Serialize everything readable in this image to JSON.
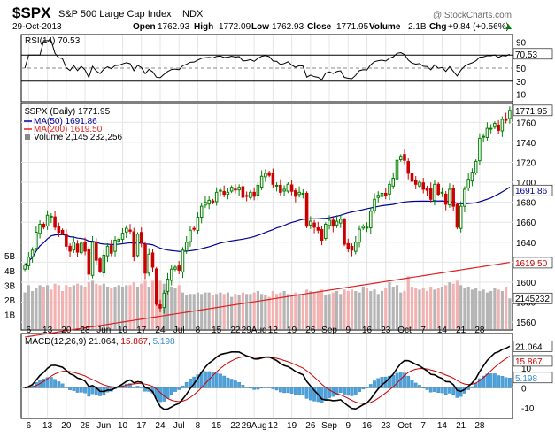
{
  "header": {
    "symbol": "$SPX",
    "name": "S&P 500 Large Cap Index",
    "exchange": "INDX",
    "date": "29-Oct-2013",
    "watermark": "@ StockCharts.com",
    "open_label": "Open",
    "open": "1762.93",
    "high_label": "High",
    "high": "1772.09",
    "low_label": "Low",
    "low": "1762.93",
    "close_label": "Close",
    "close": "1771.95",
    "volume_label": "Volume",
    "volume": "2.1B",
    "chg_label": "Chg",
    "chg": "+9.84 (+0.56%)"
  },
  "colors": {
    "up": "#008000",
    "down": "#cc0000",
    "ma50": "#000099",
    "ma200": "#e02020",
    "macd_hist": "#4aa3df",
    "vol_up": "#b5b5b5",
    "vol_down": "#f2b2b2"
  },
  "legends": {
    "rsi": "RSI(14) 70.53",
    "price": "$SPX (Daily) 1771.95",
    "ma50": "MA(50) 1691.86",
    "ma200": "MA(200) 1619.50",
    "volume": "Volume 2,145,232,256",
    "macd_prefix": "MACD(12,26,9) 21.064,",
    "macd_signal_val": "15.867",
    "macd_hist_val": "5.198"
  },
  "value_tags": {
    "rsi": "70.53",
    "close": "1771.95",
    "ma50": "1691.86",
    "ma200": "1619.50",
    "volume": "2145232",
    "macd": "21.064",
    "signal": "15.867",
    "hist": "5.198"
  },
  "chart_data": {
    "type": "candlestick",
    "x_tick_labels": [
      "6",
      "13",
      "20",
      "28",
      "Jun",
      "10",
      "17",
      "24",
      "Jul",
      "8",
      "15",
      "22",
      "29Aug",
      "12",
      "19",
      "26",
      "Sep",
      "9",
      "16",
      "23",
      "Oct",
      "7",
      "14",
      "21",
      "28"
    ],
    "price_axis": {
      "ticks": [
        "1760",
        "1740",
        "1720",
        "1700",
        "1680",
        "1660",
        "1640",
        "1620",
        "1600",
        "1580",
        "1560"
      ],
      "range": [
        1553,
        1778
      ]
    },
    "volume_axis": {
      "ticks": [
        "5B",
        "4B",
        "3B",
        "2B",
        "1B"
      ],
      "range": [
        0,
        5.8
      ]
    },
    "rsi_axis": {
      "ticks": [
        "90",
        "70",
        "50",
        "30",
        "10"
      ],
      "range": [
        0,
        100
      ]
    },
    "macd_axis": {
      "ticks": [
        "20",
        "10",
        "0",
        "-10"
      ],
      "range": [
        -15,
        27
      ]
    },
    "closes": [
      1617,
      1625,
      1632,
      1650,
      1658,
      1655,
      1667,
      1666,
      1655,
      1650,
      1649,
      1636,
      1631,
      1640,
      1630,
      1639,
      1631,
      1608,
      1640,
      1622,
      1611,
      1627,
      1636,
      1629,
      1642,
      1643,
      1649,
      1654,
      1651,
      1626,
      1648,
      1639,
      1609,
      1628,
      1615,
      1578,
      1574,
      1589,
      1603,
      1613,
      1615,
      1612,
      1632,
      1640,
      1652,
      1653,
      1665,
      1676,
      1680,
      1682,
      1680,
      1690,
      1692,
      1688,
      1690,
      1695,
      1693,
      1695,
      1685,
      1686,
      1690,
      1686,
      1697,
      1706,
      1709,
      1707,
      1698,
      1697,
      1690,
      1693,
      1698,
      1691,
      1686,
      1690,
      1689,
      1656,
      1661,
      1655,
      1652,
      1642,
      1658,
      1662,
      1656,
      1661,
      1663,
      1638,
      1634,
      1632,
      1640,
      1653,
      1656,
      1655,
      1671,
      1683,
      1687,
      1689,
      1687,
      1698,
      1704,
      1722,
      1726,
      1722,
      1709,
      1701,
      1698,
      1700,
      1693,
      1692,
      1683,
      1698,
      1688,
      1690,
      1678,
      1693,
      1676,
      1655,
      1676,
      1693,
      1703,
      1710,
      1721,
      1744,
      1746,
      1754,
      1754,
      1759,
      1752,
      1763,
      1762,
      1772
    ],
    "volumes": [
      2.5,
      3.0,
      2.6,
      2.8,
      3.0,
      2.9,
      3.0,
      2.7,
      3.1,
      3.0,
      2.6,
      3.0,
      2.9,
      3.0,
      3.1,
      3.0,
      2.9,
      3.2,
      3.3,
      3.1,
      3.0,
      3.1,
      2.9,
      2.8,
      2.9,
      3.0,
      2.9,
      3.0,
      3.0,
      3.2,
      2.9,
      3.1,
      3.3,
      2.9,
      3.3,
      3.6,
      3.3,
      3.1,
      2.8,
      2.9,
      2.8,
      3.0,
      2.5,
      2.3,
      2.4,
      2.4,
      2.5,
      2.4,
      2.5,
      2.5,
      2.3,
      2.4,
      2.5,
      2.4,
      2.5,
      2.2,
      2.4,
      2.3,
      2.5,
      2.4,
      2.4,
      2.5,
      2.6,
      2.4,
      2.3,
      2.2,
      2.6,
      2.4,
      2.5,
      2.6,
      2.4,
      2.3,
      2.5,
      2.4,
      2.4,
      2.7,
      2.6,
      2.5,
      2.6,
      2.7,
      2.3,
      2.4,
      2.5,
      2.6,
      2.4,
      2.7,
      2.6,
      2.7,
      2.6,
      2.5,
      2.9,
      2.8,
      2.6,
      2.7,
      2.4,
      2.6,
      2.8,
      3.2,
      2.9,
      3.0,
      2.5,
      2.6,
      3.6,
      2.9,
      2.8,
      2.7,
      2.8,
      2.6,
      2.9,
      2.7,
      2.8,
      2.9,
      3.0,
      3.2,
      3.1,
      3.3,
      3.0,
      2.8,
      2.9,
      2.7,
      2.8,
      2.6,
      2.7,
      2.5,
      2.6,
      2.8,
      2.7,
      2.6,
      2.9,
      2.1
    ]
  }
}
